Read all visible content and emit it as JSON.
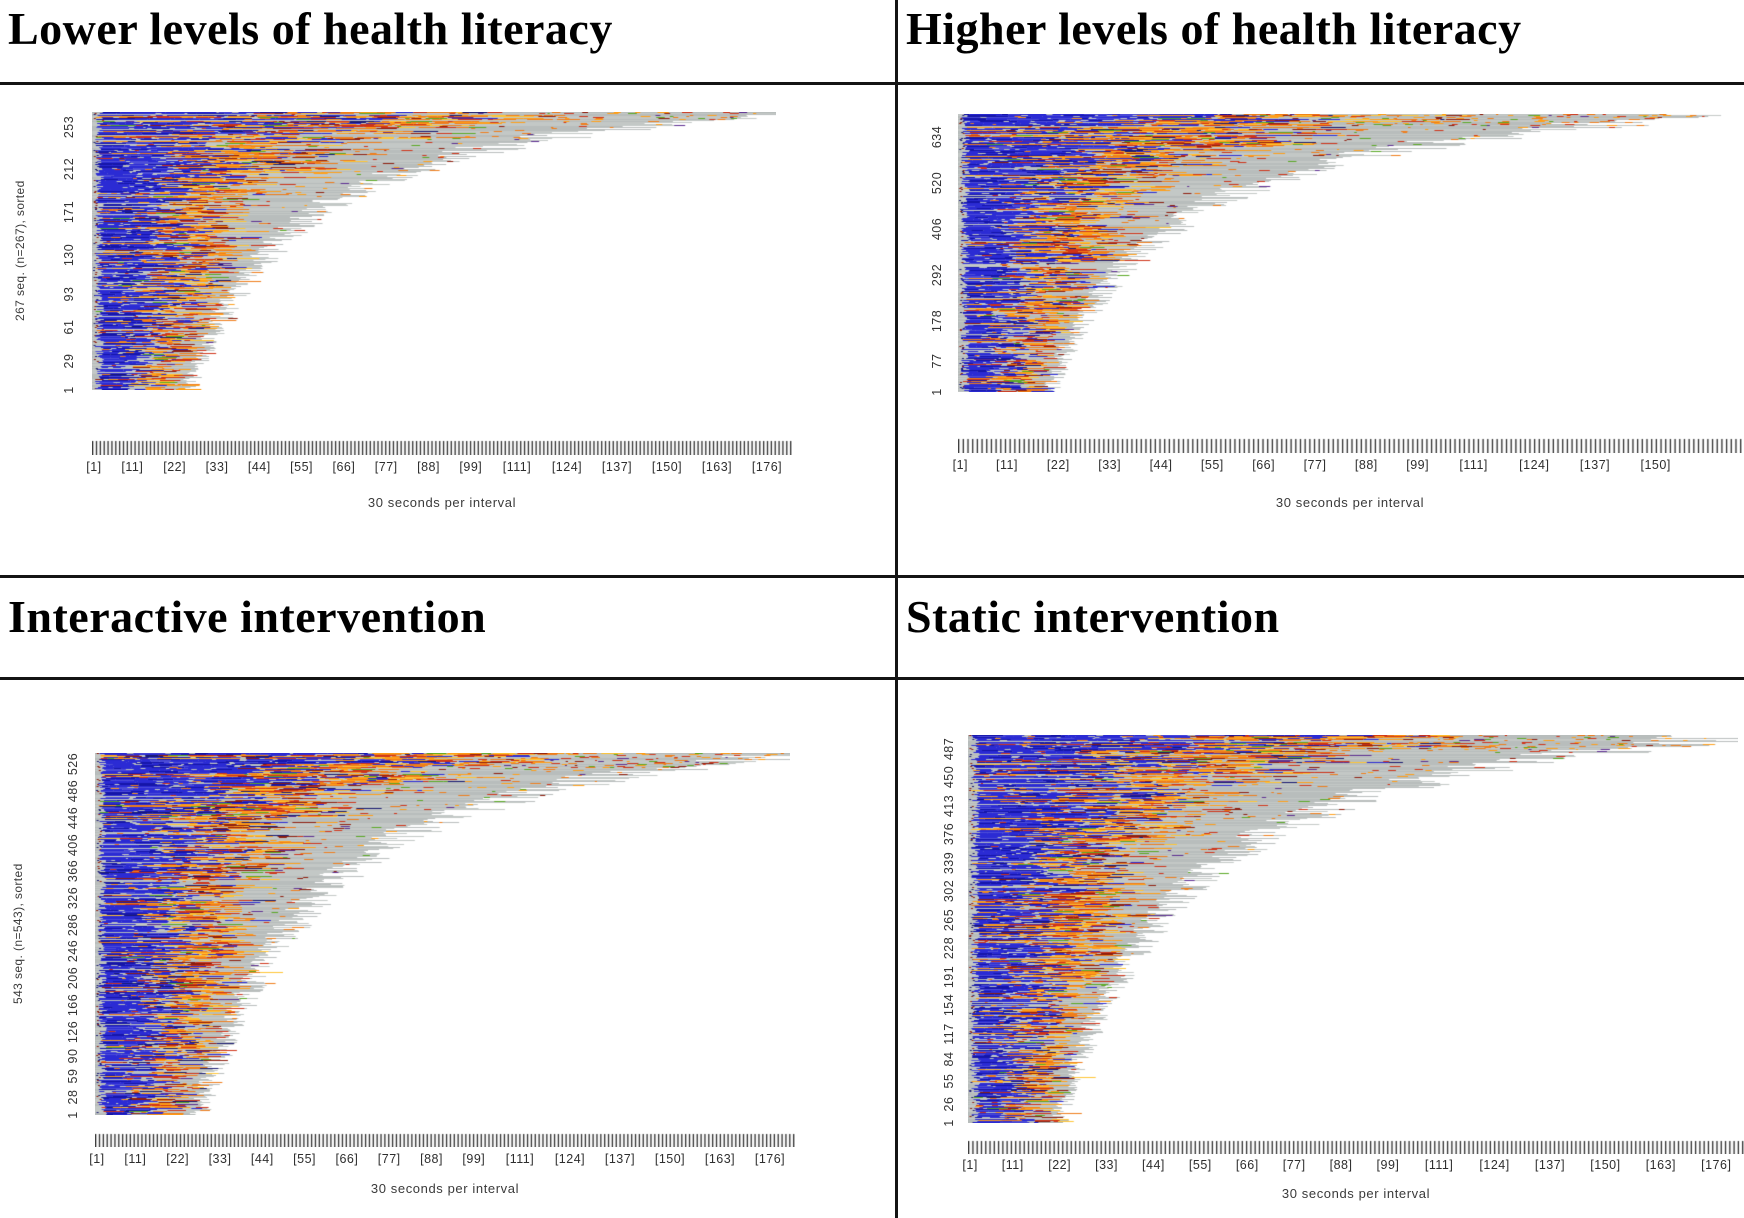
{
  "figure": {
    "layout": "2x2 grid of sequence index plots separated by black rule lines",
    "legend_shown": false,
    "state_colors_observed": {
      "gray_background": "#c3c8c6",
      "blue": "#2b2bd4",
      "deep_blue": "#1515a8",
      "navy": "#191970",
      "orange": "#ef7d1a",
      "amber": "#ff9f18",
      "yellow": "#ffc433",
      "red": "#cf3318",
      "dark_red": "#8e1d0d",
      "green": "#5aa824",
      "purple": "#5c2d91"
    }
  },
  "chart_data": [
    {
      "type": "sequence-index-plot",
      "title": "Lower levels of health literacy",
      "xlabel": "30 seconds per interval",
      "ylabel": "267 seq. (n=267), sorted",
      "n_sequences": 267,
      "y_tick_labels": [
        "1",
        "29",
        "61",
        "93",
        "130",
        "171",
        "212",
        "253"
      ],
      "x_tick_labels": [
        "[1]",
        "[11]",
        "[22]",
        "[33]",
        "[44]",
        "[55]",
        "[66]",
        "[77]",
        "[88]",
        "[99]",
        "[111]",
        "[124]",
        "[137]",
        "[150]",
        "[163]",
        "[176]"
      ],
      "sorting": "sequences sorted by length, longest at top",
      "shape": "concave decreasing envelope; colored activity concentrated at left, gray tails to the right"
    },
    {
      "type": "sequence-index-plot",
      "title": "Higher levels of health literacy",
      "xlabel": "30 seconds per interval",
      "ylabel": "",
      "y_tick_labels": [
        "1",
        "77",
        "178",
        "292",
        "406",
        "520",
        "634"
      ],
      "x_tick_labels": [
        "[1]",
        "[11]",
        "[22]",
        "[33]",
        "[44]",
        "[55]",
        "[66]",
        "[77]",
        "[88]",
        "[99]",
        "[111]",
        "[124]",
        "[137]",
        "[150]"
      ],
      "sorting": "sequences sorted by length, longest at top",
      "shape": "concave decreasing envelope; colored activity concentrated at left, gray tails to the right"
    },
    {
      "type": "sequence-index-plot",
      "title": "Interactive intervention",
      "xlabel": "30 seconds per interval",
      "ylabel": "543 seq. (n=543), sorted",
      "n_sequences": 543,
      "y_tick_labels": [
        "1",
        "28",
        "59",
        "90",
        "126",
        "166",
        "206",
        "246",
        "286",
        "326",
        "366",
        "406",
        "446",
        "486",
        "526"
      ],
      "x_tick_labels": [
        "[1]",
        "[11]",
        "[22]",
        "[33]",
        "[44]",
        "[55]",
        "[66]",
        "[77]",
        "[88]",
        "[99]",
        "[111]",
        "[124]",
        "[137]",
        "[150]",
        "[163]",
        "[176]"
      ],
      "sorting": "sequences sorted by length, longest at top",
      "shape": "concave decreasing envelope; dense blue/orange activity at left, gray tails to the right"
    },
    {
      "type": "sequence-index-plot",
      "title": "Static intervention",
      "xlabel": "30 seconds per interval",
      "ylabel": "",
      "y_tick_labels": [
        "1",
        "26",
        "55",
        "84",
        "117",
        "154",
        "191",
        "228",
        "265",
        "302",
        "339",
        "376",
        "413",
        "450",
        "487"
      ],
      "x_tick_labels": [
        "[1]",
        "[11]",
        "[22]",
        "[33]",
        "[44]",
        "[55]",
        "[66]",
        "[77]",
        "[88]",
        "[99]",
        "[111]",
        "[124]",
        "[137]",
        "[150]",
        "[163]",
        "[176]"
      ],
      "sorting": "sequences sorted by length, longest at top",
      "shape": "concave decreasing envelope; long red/orange streaks on topmost rows, gray tails to the right"
    }
  ]
}
